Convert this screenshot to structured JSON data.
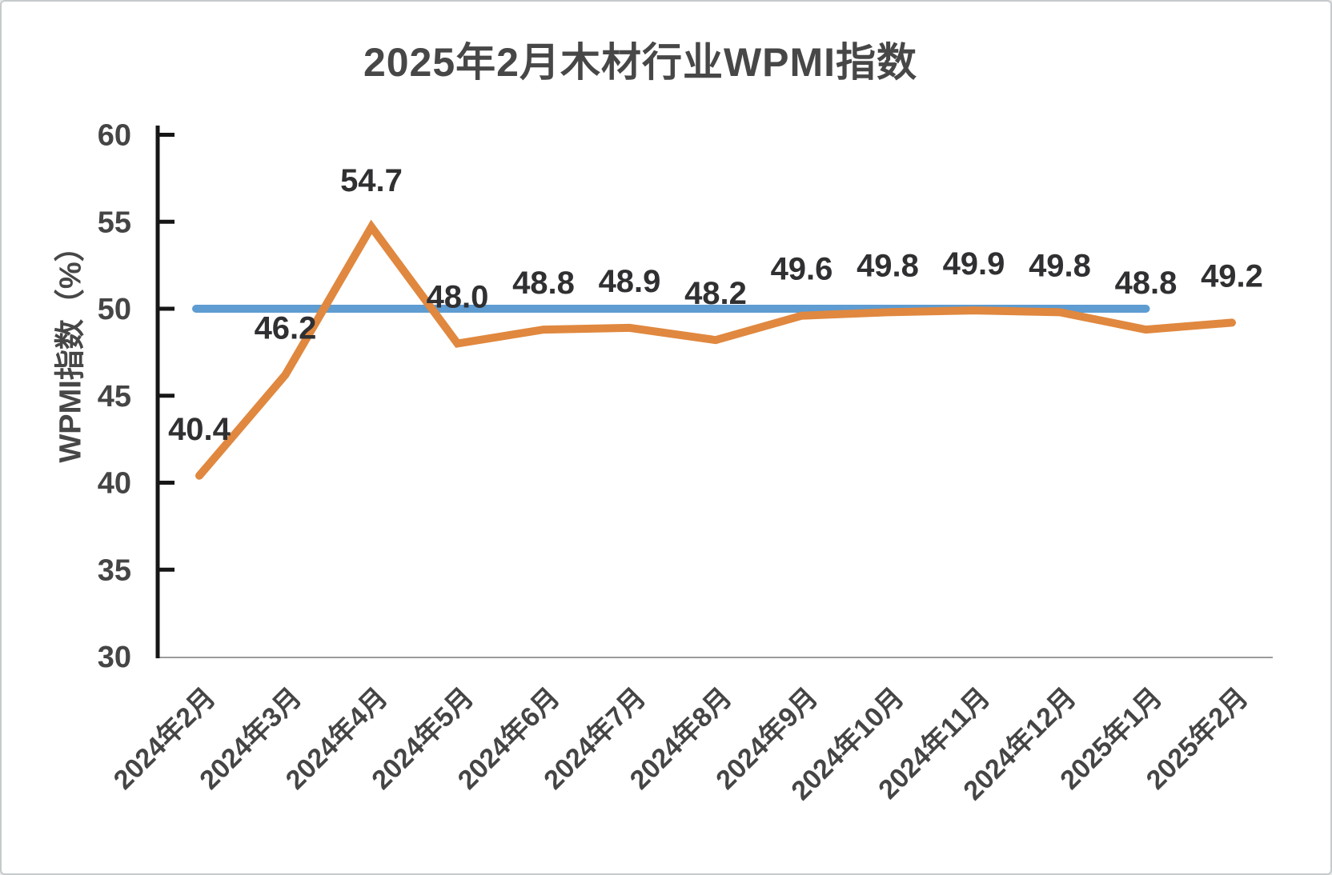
{
  "page": {
    "background_color": "#FFFFFF",
    "border_color": "#C6CACD"
  },
  "chart_data": {
    "type": "line",
    "title": "2025年2月木材行业WPMI指数",
    "xlabel": "",
    "ylabel": "WPMI指数（%）",
    "ylim": [
      30,
      60
    ],
    "y_ticks": [
      30,
      35,
      40,
      45,
      50,
      55,
      60
    ],
    "grid": false,
    "legend_position": "none",
    "categories": [
      "2024年2月",
      "2024年3月",
      "2024年4月",
      "2024年5月",
      "2024年6月",
      "2024年7月",
      "2024年8月",
      "2024年9月",
      "2024年10月",
      "2024年11月",
      "2024年12月",
      "2025年1月",
      "2025年2月"
    ],
    "series": [
      {
        "name": "WPMI指数",
        "color": "#E0883F",
        "values": [
          40.4,
          46.2,
          54.7,
          48.0,
          48.8,
          48.9,
          48.2,
          49.6,
          49.8,
          49.9,
          49.8,
          48.8,
          49.2
        ],
        "labels": [
          "40.4",
          "46.2",
          "54.7",
          "48.0",
          "48.8",
          "48.9",
          "48.2",
          "49.6",
          "49.8",
          "49.9",
          "49.8",
          "48.8",
          "49.2"
        ]
      }
    ],
    "reference_line": {
      "value": 50,
      "color": "#5E9CD2",
      "start_category": "2024年2月",
      "end_category": "2025年1月"
    },
    "colors": {
      "data_label": "#303033",
      "tick_label": "#454545",
      "axis_line": "#161616",
      "category_baseline": "#9B9B9B"
    }
  }
}
